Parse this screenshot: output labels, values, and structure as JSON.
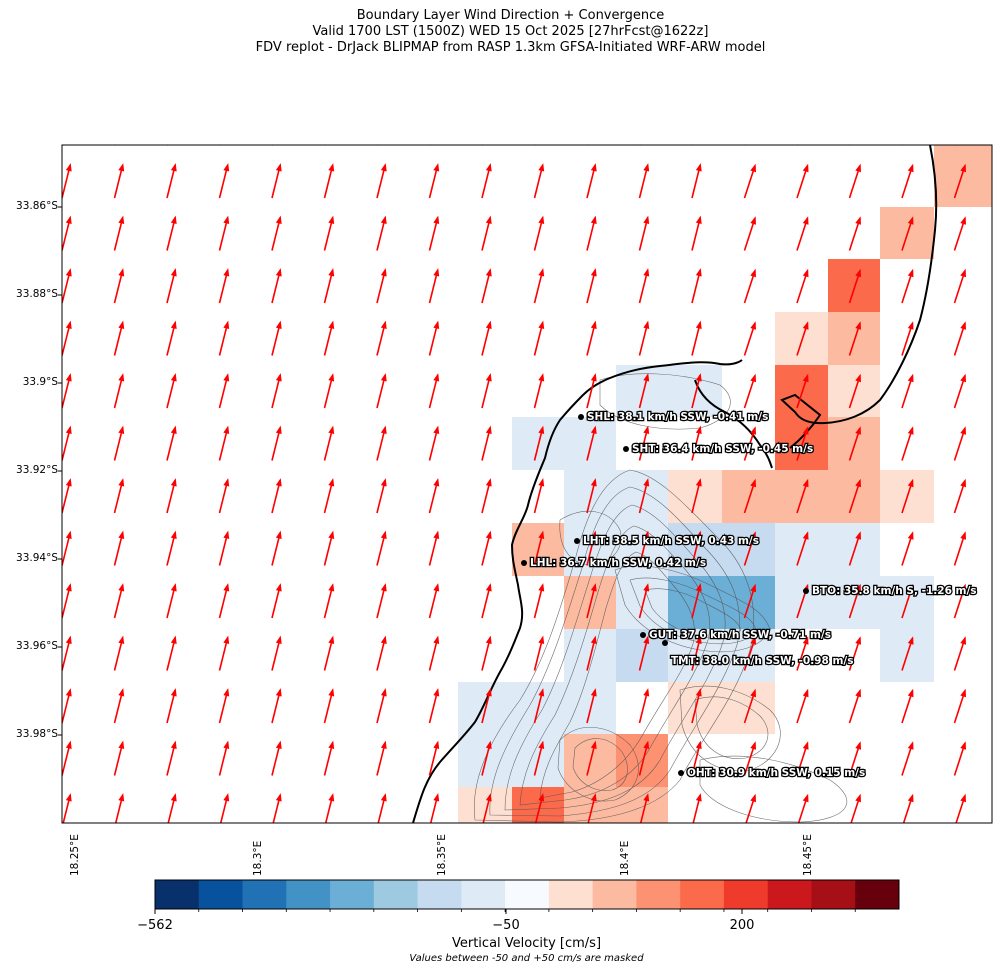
{
  "titles": {
    "line1": "Boundary Layer Wind Direction + Convergence",
    "line2": "Valid 1700 LST (1500Z) WED 15 Oct 2025 [27hrFcst@1622z]",
    "line3": "FDV replot - DrJack BLIPMAP from RASP 1.3km GFSA-Initiated WRF-ARW model"
  },
  "lat_ticks": [
    "33.86°S",
    "33.88°S",
    "33.9°S",
    "33.92°S",
    "33.94°S",
    "33.96°S",
    "33.98°S"
  ],
  "lon_ticks": [
    "18.25°E",
    "18.3°E",
    "18.35°E",
    "18.4°E",
    "18.45°E"
  ],
  "stations": [
    {
      "code": "SHL",
      "label": "SHL: 38.1 km/h SSW, -0.41 m/s"
    },
    {
      "code": "SHT",
      "label": "SHT: 36.4 km/h SSW, -0.45 m/s"
    },
    {
      "code": "LHT",
      "label": "LHT: 38.5  km/h SSW, 0.43 m/s"
    },
    {
      "code": "LHL",
      "label": "LHL: 36.7 km/h SSW, 0.42 m/s"
    },
    {
      "code": "BTO",
      "label": "BTO: 35.8 km/h S, -1.26 m/s"
    },
    {
      "code": "GUT",
      "label": "GUT: 37.6 km/h SSW, -0.71 m/s"
    },
    {
      "code": "TMT",
      "label": "TMT: 38.0 km/h SSW, -0.98 m/s"
    },
    {
      "code": "OHT",
      "label": "OHT: 30.9 km/h SSW, 0.15 m/s"
    }
  ],
  "colorbar": {
    "label": "Vertical Velocity [cm/s]",
    "note": "Values between -50 and +50 cm/s are masked",
    "ticks": [
      "−562",
      "−50",
      "200"
    ],
    "colors": [
      "#08306b",
      "#08519c",
      "#2171b5",
      "#4292c6",
      "#6baed6",
      "#9ecae1",
      "#c6dbef",
      "#deebf7",
      "#f7fbff",
      "#fee0d2",
      "#fcbba1",
      "#fc9272",
      "#fb6a4a",
      "#ef3b2c",
      "#cb181d",
      "#a50f15",
      "#67000d"
    ]
  },
  "map_style": {
    "wind_arrow_color": "#ff0000",
    "coastline_color": "#000000",
    "contour_color": "#555555"
  }
}
